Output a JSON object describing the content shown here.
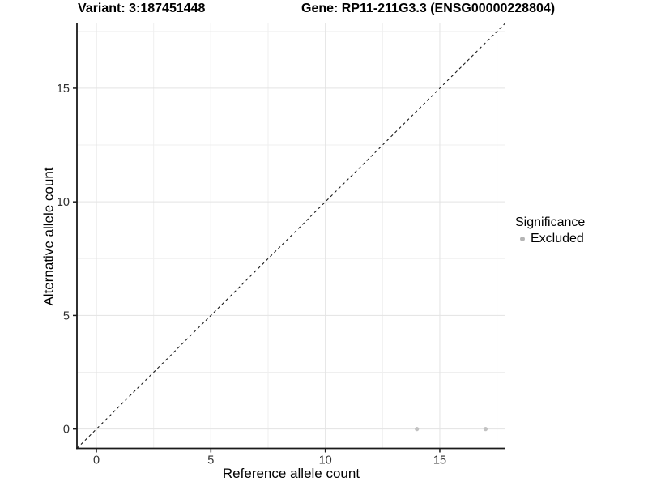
{
  "header": {
    "variant_title": "Variant: 3:187451448",
    "gene_title": "Gene: RP11-211G3.3 (ENSG00000228804)"
  },
  "chart_data": {
    "type": "scatter",
    "title": "Variant: 3:187451448   Gene: RP11-211G3.3 (ENSG00000228804)",
    "xlabel": "Reference allele count",
    "ylabel": "Alternative allele count",
    "xlim": [
      -0.85,
      17.85
    ],
    "ylim": [
      -0.85,
      17.85
    ],
    "x_major_ticks": [
      0,
      5,
      10,
      15
    ],
    "y_major_ticks": [
      0,
      5,
      10,
      15
    ],
    "x_minor_ticks": [
      2.5,
      7.5,
      12.5,
      17.5
    ],
    "y_minor_ticks": [
      2.5,
      7.5,
      12.5,
      17.5
    ],
    "x_tick_labels": [
      "0",
      "5",
      "10",
      "15"
    ],
    "y_tick_labels": [
      "0",
      "5",
      "10",
      "15"
    ],
    "grid": true,
    "legend_position": "right",
    "series": [
      {
        "name": "Excluded",
        "color": "#bebebe",
        "points": [
          [
            14,
            0
          ],
          [
            17,
            0
          ]
        ]
      }
    ],
    "reference_line": {
      "style": "dashed",
      "slope": 1,
      "intercept": 0,
      "color": "#1a1a1a",
      "description": "identity line y = x"
    }
  },
  "legend": {
    "title": "Significance",
    "items": [
      {
        "label": "Excluded",
        "color": "#b5b5b5"
      }
    ]
  },
  "colors": {
    "background": "#ffffff",
    "axis_line": "#1a1a1a",
    "tick_label": "#303030",
    "grid_major": "#e3e3e3",
    "grid_minor": "#efefef",
    "point": "#c2c2c2"
  }
}
